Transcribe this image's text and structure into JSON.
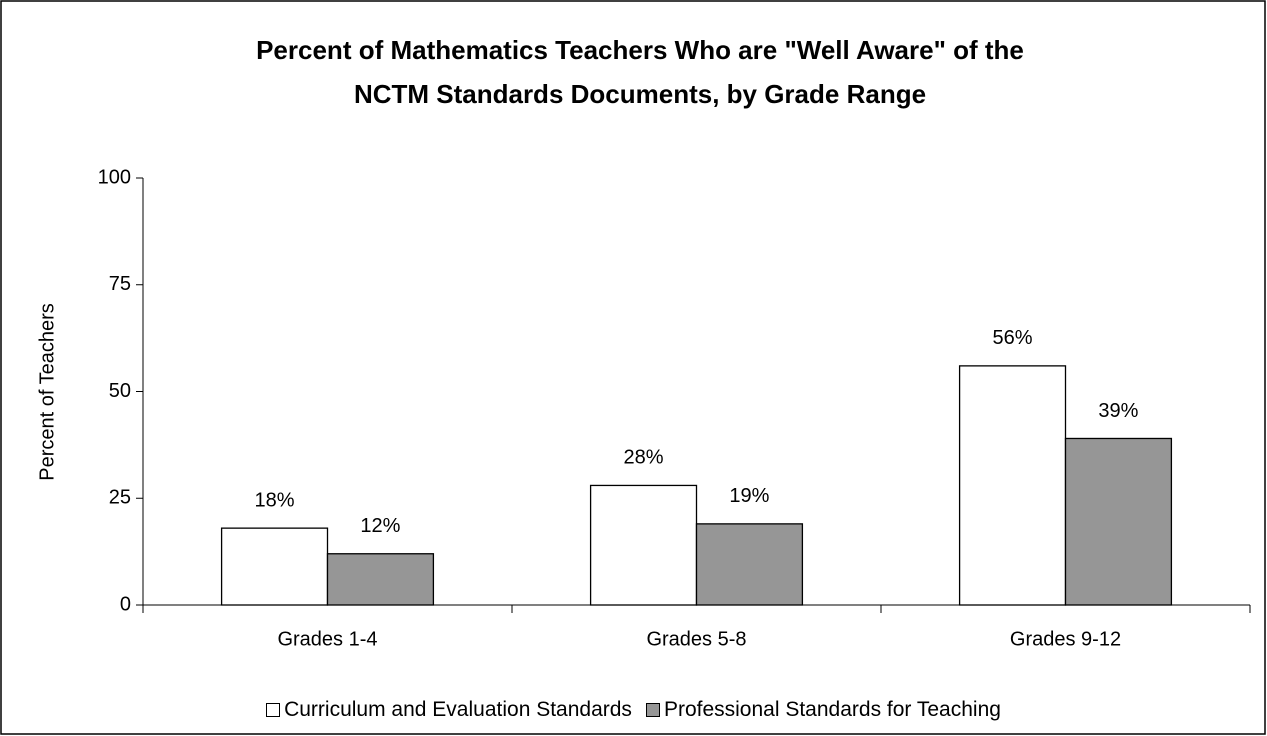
{
  "chart_data": {
    "type": "bar",
    "title": [
      "Percent of Mathematics Teachers Who are \"Well Aware\" of the",
      "NCTM Standards Documents, by Grade Range"
    ],
    "y_label": "Percent of Teachers",
    "categories": [
      "Grades 1-4",
      "Grades 5-8",
      "Grades 9-12"
    ],
    "series": [
      {
        "name": "Curriculum and Evaluation Standards",
        "color": "#ffffff",
        "values": [
          18,
          28,
          56
        ],
        "value_labels": [
          "18%",
          "28%",
          "56%"
        ]
      },
      {
        "name": "Professional Standards for Teaching",
        "color": "#969696",
        "values": [
          12,
          19,
          39
        ],
        "value_labels": [
          "12%",
          "19%",
          "39%"
        ]
      }
    ],
    "ylim": [
      0,
      100
    ],
    "yticks": [
      0,
      25,
      50,
      75,
      100
    ],
    "grid": false
  }
}
